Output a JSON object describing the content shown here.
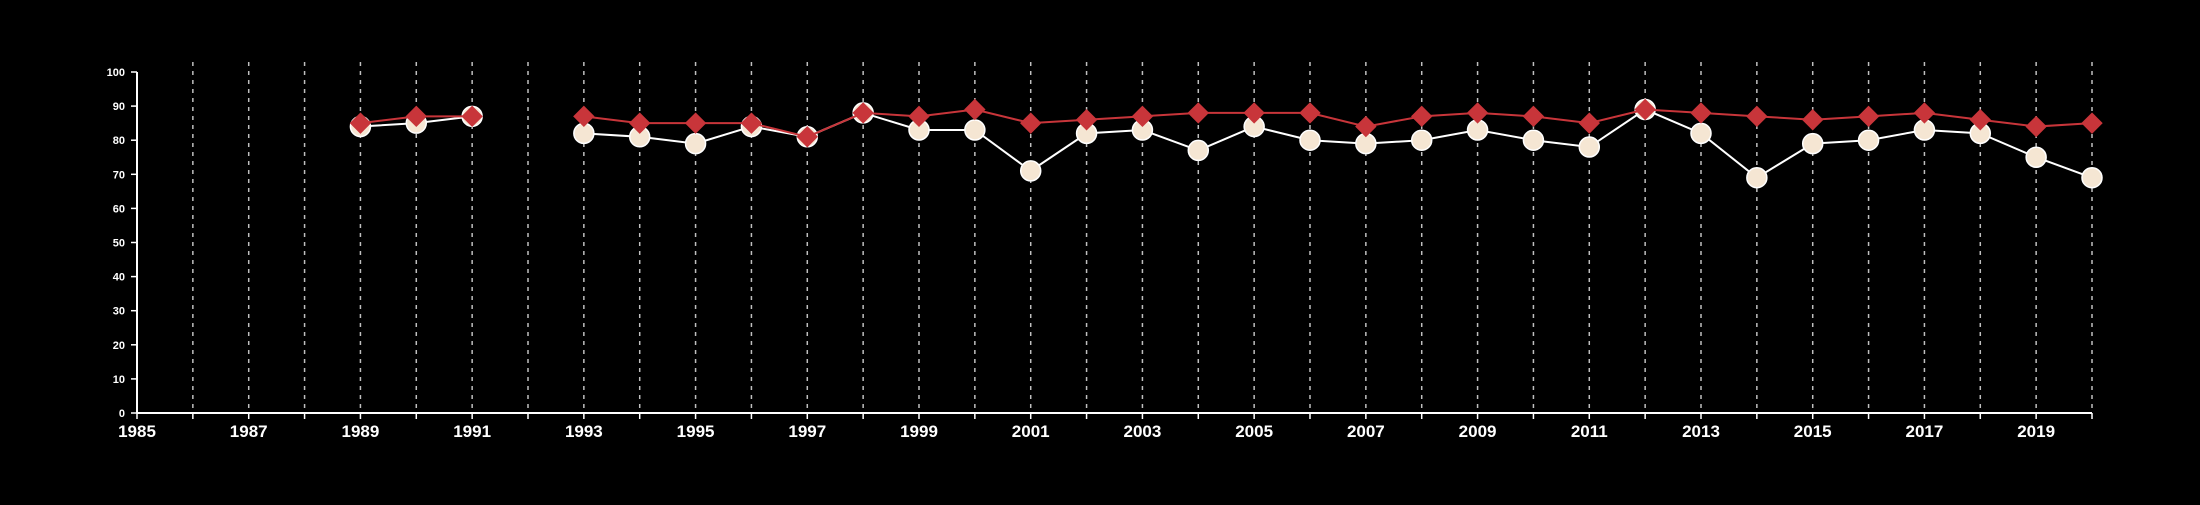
{
  "chart_data": {
    "type": "line",
    "title": "",
    "xlabel": "",
    "ylabel": "",
    "xlim": [
      1985,
      2020
    ],
    "ylim": [
      0,
      100
    ],
    "x_ticks": [
      1985,
      1987,
      1989,
      1991,
      1993,
      1995,
      1997,
      1999,
      2001,
      2003,
      2005,
      2007,
      2009,
      2011,
      2013,
      2015,
      2017,
      2019
    ],
    "x_tick_labels": [
      "1985",
      "1987",
      "1989",
      "1991",
      "1993",
      "1995",
      "1997",
      "1999",
      "2001",
      "2003",
      "2005",
      "2007",
      "2009",
      "2011",
      "2013",
      "2015",
      "2017",
      "2019"
    ],
    "y_ticks": [
      0,
      10,
      20,
      30,
      40,
      50,
      60,
      70,
      80,
      90,
      100
    ],
    "y_tick_labels": [
      "0",
      "10",
      "20",
      "30",
      "40",
      "50",
      "60",
      "70",
      "80",
      "90",
      "100"
    ],
    "vertical_dashed_grid": true,
    "background": "#000000",
    "axis_color": "#ffffff",
    "grid_color": "#bfbfbf",
    "series": [
      {
        "marker": "circle",
        "color": "#ffffff",
        "marker_fill": "#f5e6d3",
        "points": [
          {
            "x": 1989,
            "y": 84
          },
          {
            "x": 1990,
            "y": 85
          },
          {
            "x": 1991,
            "y": 87
          },
          {
            "x": 1992,
            "y": null
          },
          {
            "x": 1993,
            "y": 82
          },
          {
            "x": 1994,
            "y": 81
          },
          {
            "x": 1995,
            "y": 79
          },
          {
            "x": 1996,
            "y": 84
          },
          {
            "x": 1997,
            "y": 81
          },
          {
            "x": 1998,
            "y": 88
          },
          {
            "x": 1999,
            "y": 83
          },
          {
            "x": 2000,
            "y": 83
          },
          {
            "x": 2001,
            "y": 71
          },
          {
            "x": 2002,
            "y": 82
          },
          {
            "x": 2003,
            "y": 83
          },
          {
            "x": 2004,
            "y": 77
          },
          {
            "x": 2005,
            "y": 84
          },
          {
            "x": 2006,
            "y": 80
          },
          {
            "x": 2007,
            "y": 79
          },
          {
            "x": 2008,
            "y": 80
          },
          {
            "x": 2009,
            "y": 83
          },
          {
            "x": 2010,
            "y": 80
          },
          {
            "x": 2011,
            "y": 78
          },
          {
            "x": 2012,
            "y": 89
          },
          {
            "x": 2013,
            "y": 82
          },
          {
            "x": 2014,
            "y": 69
          },
          {
            "x": 2015,
            "y": 79
          },
          {
            "x": 2016,
            "y": 80
          },
          {
            "x": 2017,
            "y": 83
          },
          {
            "x": 2018,
            "y": 82
          },
          {
            "x": 2019,
            "y": 75
          },
          {
            "x": 2020,
            "y": 69
          }
        ]
      },
      {
        "marker": "diamond",
        "color": "#c8353a",
        "marker_fill": "#c8353a",
        "points": [
          {
            "x": 1989,
            "y": 85
          },
          {
            "x": 1990,
            "y": 87
          },
          {
            "x": 1991,
            "y": 87
          },
          {
            "x": 1992,
            "y": null
          },
          {
            "x": 1993,
            "y": 87
          },
          {
            "x": 1994,
            "y": 85
          },
          {
            "x": 1995,
            "y": 85
          },
          {
            "x": 1996,
            "y": 85
          },
          {
            "x": 1997,
            "y": 81
          },
          {
            "x": 1998,
            "y": 88
          },
          {
            "x": 1999,
            "y": 87
          },
          {
            "x": 2000,
            "y": 89
          },
          {
            "x": 2001,
            "y": 85
          },
          {
            "x": 2002,
            "y": 86
          },
          {
            "x": 2003,
            "y": 87
          },
          {
            "x": 2004,
            "y": 88
          },
          {
            "x": 2005,
            "y": 88
          },
          {
            "x": 2006,
            "y": 88
          },
          {
            "x": 2007,
            "y": 84
          },
          {
            "x": 2008,
            "y": 87
          },
          {
            "x": 2009,
            "y": 88
          },
          {
            "x": 2010,
            "y": 87
          },
          {
            "x": 2011,
            "y": 85
          },
          {
            "x": 2012,
            "y": 89
          },
          {
            "x": 2013,
            "y": 88
          },
          {
            "x": 2014,
            "y": 87
          },
          {
            "x": 2015,
            "y": 86
          },
          {
            "x": 2016,
            "y": 87
          },
          {
            "x": 2017,
            "y": 88
          },
          {
            "x": 2018,
            "y": 86
          },
          {
            "x": 2019,
            "y": 84
          },
          {
            "x": 2020,
            "y": 85
          }
        ]
      }
    ]
  }
}
